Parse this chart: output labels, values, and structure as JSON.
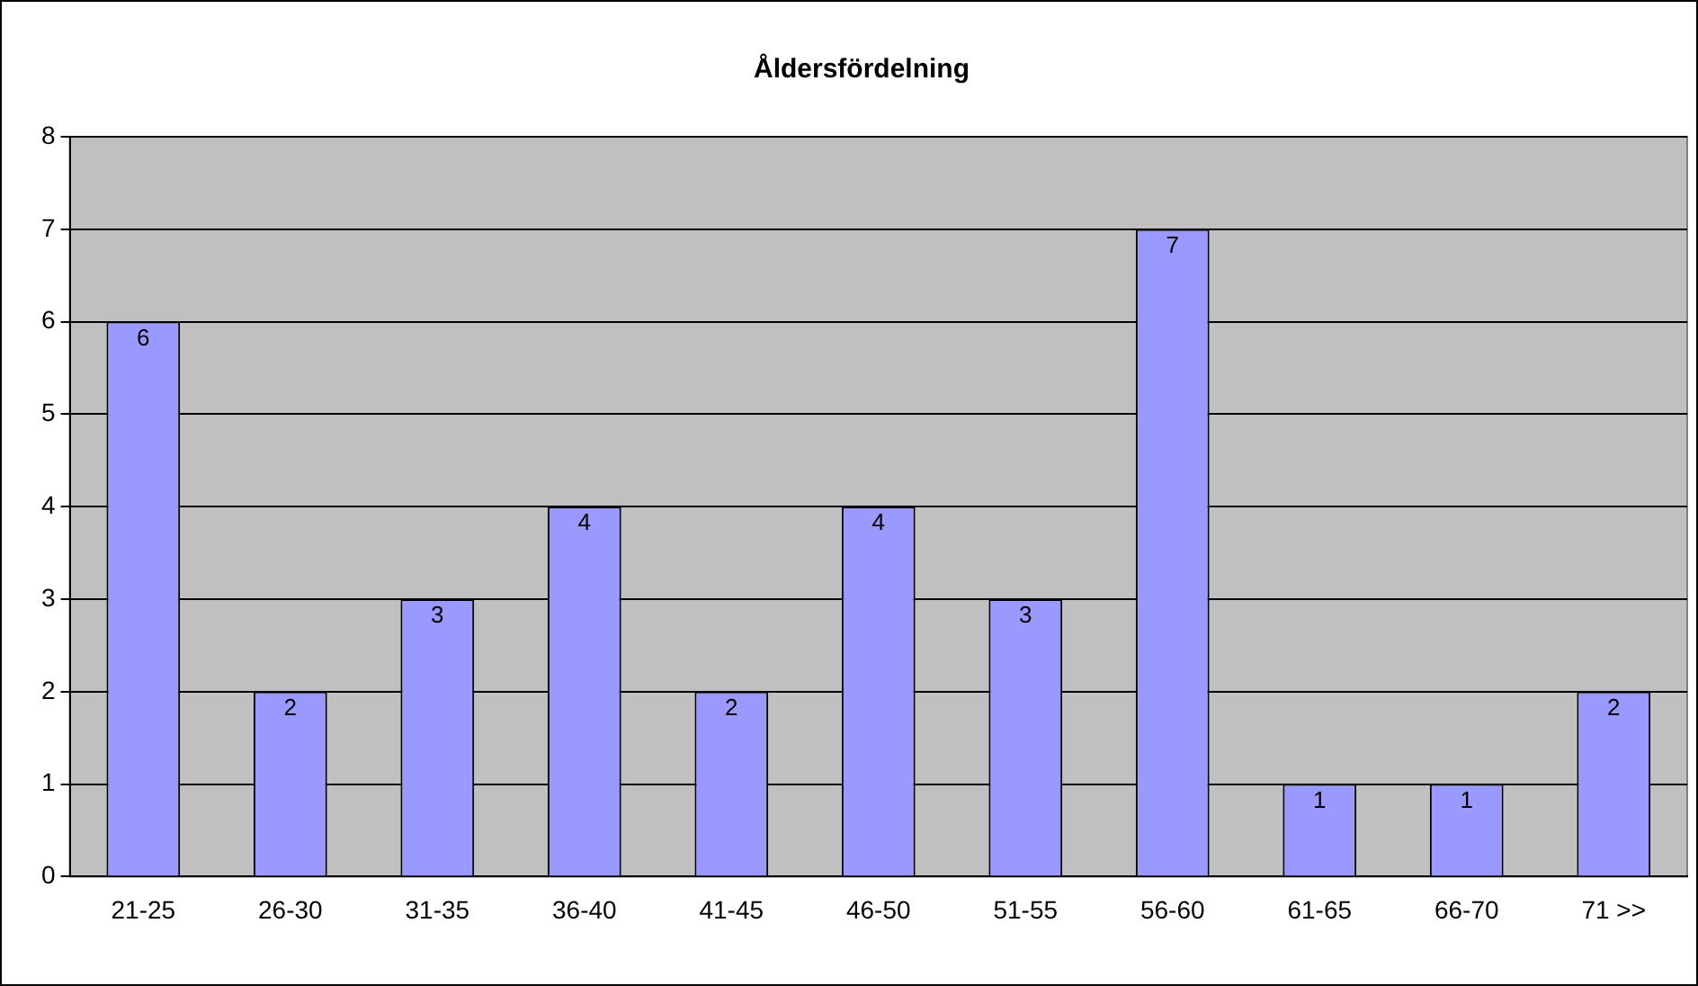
{
  "chart_data": {
    "type": "bar",
    "title": "Åldersfördelning",
    "categories": [
      "21-25",
      "26-30",
      "31-35",
      "36-40",
      "41-45",
      "46-50",
      "51-55",
      "56-60",
      "61-65",
      "66-70",
      "71 >>"
    ],
    "values": [
      6,
      2,
      3,
      4,
      2,
      4,
      3,
      7,
      1,
      1,
      2
    ],
    "color": "#9999ff",
    "ylim": [
      0,
      8
    ],
    "yticks": [
      0,
      1,
      2,
      3,
      4,
      5,
      6,
      7,
      8
    ],
    "grid": "y",
    "legend": false,
    "data_labels": true
  }
}
